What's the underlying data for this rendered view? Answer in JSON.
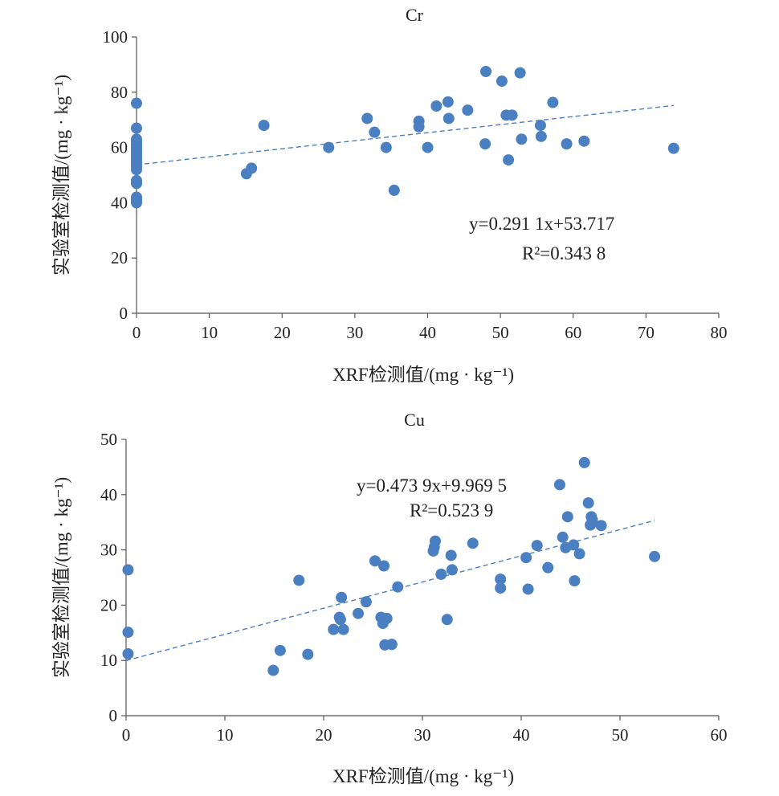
{
  "chart_data": [
    {
      "type": "scatter",
      "title": "Cr",
      "xlabel": "XRF检测值/(mg · kg⁻¹)",
      "ylabel": "实验室检测值/(mg · kg⁻¹)",
      "xlim": [
        0,
        80
      ],
      "ylim": [
        0,
        100
      ],
      "xticks": [
        0,
        10,
        20,
        30,
        40,
        50,
        60,
        70,
        80
      ],
      "yticks": [
        0,
        20,
        40,
        60,
        80,
        100
      ],
      "grid": false,
      "trendline": {
        "slope": 0.2911,
        "intercept": 53.717,
        "x_range": [
          0,
          73.8
        ]
      },
      "equation": "y=0.291 1x+53.717",
      "r2": "R²=0.343 8",
      "points": [
        {
          "x": 0,
          "y": 76
        },
        {
          "x": 0,
          "y": 67
        },
        {
          "x": 0,
          "y": 63
        },
        {
          "x": 0,
          "y": 62
        },
        {
          "x": 0,
          "y": 61
        },
        {
          "x": 0,
          "y": 60
        },
        {
          "x": 0,
          "y": 59
        },
        {
          "x": 0,
          "y": 58
        },
        {
          "x": 0,
          "y": 57
        },
        {
          "x": 0,
          "y": 56
        },
        {
          "x": 0,
          "y": 55
        },
        {
          "x": 0,
          "y": 54
        },
        {
          "x": 0,
          "y": 53
        },
        {
          "x": 0,
          "y": 52
        },
        {
          "x": 0,
          "y": 48
        },
        {
          "x": 0,
          "y": 47
        },
        {
          "x": 0,
          "y": 42
        },
        {
          "x": 0,
          "y": 41
        },
        {
          "x": 0,
          "y": 40
        },
        {
          "x": 15.1,
          "y": 50.5
        },
        {
          "x": 15.8,
          "y": 52.5
        },
        {
          "x": 17.5,
          "y": 68
        },
        {
          "x": 26.4,
          "y": 60
        },
        {
          "x": 31.7,
          "y": 70.5
        },
        {
          "x": 32.7,
          "y": 65.5
        },
        {
          "x": 34.3,
          "y": 60
        },
        {
          "x": 35.4,
          "y": 44.5
        },
        {
          "x": 38.8,
          "y": 69.5
        },
        {
          "x": 38.8,
          "y": 67.5
        },
        {
          "x": 40,
          "y": 60
        },
        {
          "x": 41.2,
          "y": 75
        },
        {
          "x": 42.8,
          "y": 76.5
        },
        {
          "x": 42.9,
          "y": 70.5
        },
        {
          "x": 45.5,
          "y": 73.5
        },
        {
          "x": 48,
          "y": 87.5
        },
        {
          "x": 47.9,
          "y": 61.3
        },
        {
          "x": 50.2,
          "y": 84
        },
        {
          "x": 50.8,
          "y": 71.7
        },
        {
          "x": 51.6,
          "y": 71.7
        },
        {
          "x": 51.1,
          "y": 55.5
        },
        {
          "x": 52.7,
          "y": 87
        },
        {
          "x": 52.9,
          "y": 63
        },
        {
          "x": 55.5,
          "y": 68
        },
        {
          "x": 55.6,
          "y": 64
        },
        {
          "x": 57.2,
          "y": 76.3
        },
        {
          "x": 59.1,
          "y": 61.3
        },
        {
          "x": 61.5,
          "y": 62.3
        },
        {
          "x": 73.8,
          "y": 59.7
        }
      ]
    },
    {
      "type": "scatter",
      "title": "Cu",
      "xlabel": "XRF检测值/(mg · kg⁻¹)",
      "ylabel": "实验室检测值/(mg · kg⁻¹)",
      "xlim": [
        0,
        60
      ],
      "ylim": [
        0,
        50
      ],
      "xticks": [
        0,
        10,
        20,
        30,
        40,
        50,
        60
      ],
      "yticks": [
        0,
        10,
        20,
        30,
        40,
        50
      ],
      "grid": false,
      "trendline": {
        "slope": 0.4739,
        "intercept": 9.9695,
        "x_range": [
          0,
          53.5
        ]
      },
      "equation": "y=0.473 9x+9.969 5",
      "r2": "R²=0.523 9",
      "points": [
        {
          "x": 0.2,
          "y": 26.4
        },
        {
          "x": 0.2,
          "y": 15.1
        },
        {
          "x": 0.2,
          "y": 11.2
        },
        {
          "x": 14.9,
          "y": 8.2
        },
        {
          "x": 15.6,
          "y": 11.8
        },
        {
          "x": 17.5,
          "y": 24.5
        },
        {
          "x": 18.4,
          "y": 11.1
        },
        {
          "x": 21.0,
          "y": 15.6
        },
        {
          "x": 21.6,
          "y": 17.8
        },
        {
          "x": 21.7,
          "y": 17.4
        },
        {
          "x": 21.8,
          "y": 21.4
        },
        {
          "x": 22.0,
          "y": 15.6
        },
        {
          "x": 23.5,
          "y": 18.5
        },
        {
          "x": 24.3,
          "y": 20.6
        },
        {
          "x": 25.2,
          "y": 28.0
        },
        {
          "x": 25.8,
          "y": 17.8
        },
        {
          "x": 26.0,
          "y": 16.7
        },
        {
          "x": 26.1,
          "y": 27.1
        },
        {
          "x": 26.2,
          "y": 12.8
        },
        {
          "x": 26.4,
          "y": 17.6
        },
        {
          "x": 26.9,
          "y": 12.9
        },
        {
          "x": 27.5,
          "y": 23.3
        },
        {
          "x": 31.1,
          "y": 29.8
        },
        {
          "x": 31.2,
          "y": 30.5
        },
        {
          "x": 31.3,
          "y": 31.6
        },
        {
          "x": 31.9,
          "y": 25.6
        },
        {
          "x": 32.5,
          "y": 17.4
        },
        {
          "x": 32.9,
          "y": 29.0
        },
        {
          "x": 33.0,
          "y": 26.4
        },
        {
          "x": 35.1,
          "y": 31.2
        },
        {
          "x": 37.9,
          "y": 24.7
        },
        {
          "x": 37.9,
          "y": 23.1
        },
        {
          "x": 40.5,
          "y": 28.6
        },
        {
          "x": 40.7,
          "y": 22.9
        },
        {
          "x": 41.6,
          "y": 30.8
        },
        {
          "x": 42.7,
          "y": 26.8
        },
        {
          "x": 43.9,
          "y": 41.8
        },
        {
          "x": 44.2,
          "y": 32.3
        },
        {
          "x": 44.5,
          "y": 30.4
        },
        {
          "x": 44.7,
          "y": 36.0
        },
        {
          "x": 45.3,
          "y": 30.9
        },
        {
          "x": 45.4,
          "y": 24.4
        },
        {
          "x": 45.9,
          "y": 29.3
        },
        {
          "x": 46.4,
          "y": 45.8
        },
        {
          "x": 46.8,
          "y": 38.5
        },
        {
          "x": 47.0,
          "y": 34.5
        },
        {
          "x": 47.1,
          "y": 36.0
        },
        {
          "x": 47.2,
          "y": 35.4
        },
        {
          "x": 48.1,
          "y": 34.4
        },
        {
          "x": 53.5,
          "y": 28.8
        }
      ]
    }
  ]
}
